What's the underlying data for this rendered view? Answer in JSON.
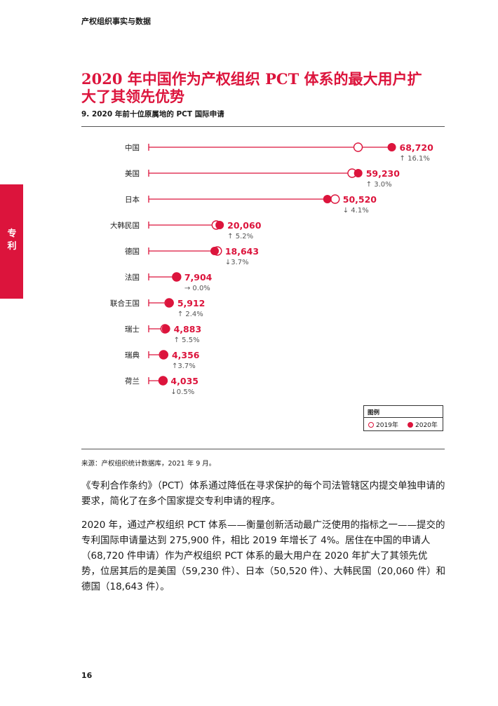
{
  "header": {
    "title": "产权组织事实与数据"
  },
  "side_tab": {
    "label": "专利"
  },
  "title": "2020 年中国作为产权组织 PCT 体系的最大用户扩大了其领先优势",
  "subtitle": "9. 2020 年前十位原属地的 PCT 国际申请",
  "chart_data": {
    "type": "dot",
    "categories": [
      "中国",
      "美国",
      "日本",
      "大韩民国",
      "德国",
      "法国",
      "联合王国",
      "瑞士",
      "瑞典",
      "荷兰"
    ],
    "series": [
      {
        "name": "2019年",
        "values": [
          59200,
          57500,
          52700,
          19100,
          19400,
          7900,
          5770,
          4630,
          4200,
          4050
        ]
      },
      {
        "name": "2020年",
        "values": [
          68720,
          59230,
          50520,
          20060,
          18643,
          7904,
          5912,
          4883,
          4356,
          4035
        ]
      }
    ],
    "value_labels": [
      "68,720",
      "59,230",
      "50,520",
      "20,060",
      "18,643",
      "7,904",
      "5,912",
      "4,883",
      "4,356",
      "4,035"
    ],
    "change_labels": [
      "↑ 16.1%",
      "↑ 3.0%",
      "↓ 4.1%",
      "↑ 5.2%",
      "↓3.7%",
      "→ 0.0%",
      "↑ 2.4%",
      "↑ 5.5%",
      "↑3.7%",
      "↓0.5%"
    ],
    "xlim": [
      0,
      70000
    ],
    "grid": false,
    "colors": {
      "accent": "#dc143c",
      "text": "#1a1a1a",
      "muted": "#555555"
    }
  },
  "legend": {
    "title": "图例",
    "items": [
      "2019年",
      "2020年"
    ]
  },
  "source": "来源：产权组织统计数据库，2021 年 9 月。",
  "paragraphs": [
    "《专利合作条约》（PCT）体系通过降低在寻求保护的每个司法管辖区内提交单独申请的要求，简化了在多个国家提交专利申请的程序。",
    "2020 年，通过产权组织 PCT 体系——衡量创新活动最广泛使用的指标之一——提交的专利国际申请量达到 275,900 件，相比 2019 年增长了 4%。居住在中国的申请人（68,720 件申请）作为产权组织 PCT 体系的最大用户在 2020 年扩大了其领先优势，位居其后的是美国（59,230 件）、日本（50,520 件）、大韩民国（20,060 件）和德国（18,643 件）。"
  ],
  "page_number": "16"
}
